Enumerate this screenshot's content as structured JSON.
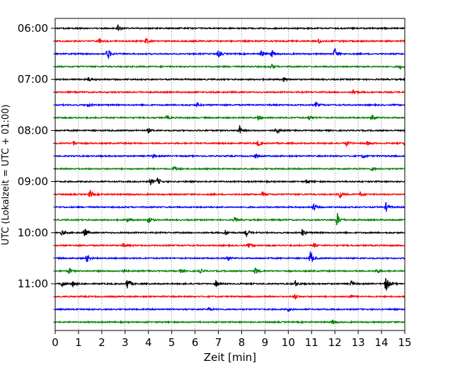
{
  "chart_data": {
    "type": "line",
    "subtype": "seismic-helicorder",
    "xlabel": "Zeit  [min]",
    "ylabel": "UTC (Lokalzeit = UTC + 01:00)",
    "xlim": [
      0,
      15
    ],
    "x_ticks": [
      "0",
      "1",
      "2",
      "3",
      "4",
      "5",
      "6",
      "7",
      "8",
      "9",
      "10",
      "11",
      "12",
      "13",
      "14",
      "15"
    ],
    "row_interval_minutes": 15,
    "rows_start": "06:00",
    "row_count": 24,
    "y_tick_labels": [
      "06:00",
      "07:00",
      "08:00",
      "09:00",
      "10:00",
      "11:00"
    ],
    "y_tick_rows": [
      0,
      4,
      8,
      12,
      16,
      20
    ],
    "trace_colors": [
      "#000000",
      "#ff0000",
      "#0000ff",
      "#008000"
    ],
    "vertical_grid": "dotted",
    "rows": [
      {
        "time": "06:00",
        "color": "#000000",
        "events": [
          {
            "min": 2.7,
            "amp": 0.4
          }
        ]
      },
      {
        "time": "06:15",
        "color": "#ff0000",
        "events": [
          {
            "min": 1.9,
            "amp": 0.3
          },
          {
            "min": 3.9,
            "amp": 0.4
          },
          {
            "min": 11.3,
            "amp": 0.3
          }
        ]
      },
      {
        "time": "06:30",
        "color": "#0000ff",
        "events": [
          {
            "min": 2.25,
            "amp": 0.9
          },
          {
            "min": 7.0,
            "amp": 0.5
          },
          {
            "min": 8.85,
            "amp": 0.5
          },
          {
            "min": 9.3,
            "amp": 0.5
          },
          {
            "min": 12.0,
            "amp": 0.8
          }
        ]
      },
      {
        "time": "06:45",
        "color": "#008000",
        "events": [
          {
            "min": 9.3,
            "amp": 0.3
          },
          {
            "min": 14.8,
            "amp": 0.3
          }
        ]
      },
      {
        "time": "07:00",
        "color": "#000000",
        "events": [
          {
            "min": 1.45,
            "amp": 0.35
          },
          {
            "min": 9.8,
            "amp": 0.3
          }
        ]
      },
      {
        "time": "07:15",
        "color": "#ff0000",
        "events": [
          {
            "min": 12.8,
            "amp": 0.4
          }
        ]
      },
      {
        "time": "07:30",
        "color": "#0000ff",
        "events": [
          {
            "min": 1.4,
            "amp": 0.25
          },
          {
            "min": 6.1,
            "amp": 0.3
          },
          {
            "min": 11.2,
            "amp": 0.35
          }
        ]
      },
      {
        "time": "07:45",
        "color": "#008000",
        "events": [
          {
            "min": 4.8,
            "amp": 0.25
          },
          {
            "min": 8.7,
            "amp": 0.3
          },
          {
            "min": 10.9,
            "amp": 0.3
          },
          {
            "min": 13.6,
            "amp": 0.45
          }
        ]
      },
      {
        "time": "08:00",
        "color": "#000000",
        "events": [
          {
            "min": 4.0,
            "amp": 0.3
          },
          {
            "min": 7.9,
            "amp": 0.65
          },
          {
            "min": 9.5,
            "amp": 0.45
          }
        ]
      },
      {
        "time": "08:15",
        "color": "#ff0000",
        "events": [
          {
            "min": 0.8,
            "amp": 0.3
          },
          {
            "min": 8.7,
            "amp": 0.4
          },
          {
            "min": 12.5,
            "amp": 0.4
          },
          {
            "min": 13.4,
            "amp": 0.3
          },
          {
            "min": 15.0,
            "amp": 0.3
          }
        ]
      },
      {
        "time": "08:30",
        "color": "#0000ff",
        "events": [
          {
            "min": 4.2,
            "amp": 0.25
          },
          {
            "min": 8.6,
            "amp": 0.25
          },
          {
            "min": 13.2,
            "amp": 0.25
          }
        ]
      },
      {
        "time": "08:45",
        "color": "#008000",
        "events": [
          {
            "min": 5.1,
            "amp": 0.4
          },
          {
            "min": 13.6,
            "amp": 0.25
          }
        ]
      },
      {
        "time": "09:00",
        "color": "#000000",
        "events": [
          {
            "min": 4.1,
            "amp": 0.4
          },
          {
            "min": 4.4,
            "amp": 0.5
          },
          {
            "min": 10.8,
            "amp": 0.3
          }
        ]
      },
      {
        "time": "09:15",
        "color": "#ff0000",
        "events": [
          {
            "min": 1.5,
            "amp": 0.55
          },
          {
            "min": 8.9,
            "amp": 0.35
          },
          {
            "min": 12.2,
            "amp": 0.5
          },
          {
            "min": 13.1,
            "amp": 0.3
          }
        ]
      },
      {
        "time": "09:30",
        "color": "#0000ff",
        "events": [
          {
            "min": 11.1,
            "amp": 0.5
          },
          {
            "min": 14.2,
            "amp": 0.6
          }
        ]
      },
      {
        "time": "09:45",
        "color": "#008000",
        "events": [
          {
            "min": 3.1,
            "amp": 0.3
          },
          {
            "min": 4.0,
            "amp": 0.6
          },
          {
            "min": 7.7,
            "amp": 0.35
          },
          {
            "min": 12.1,
            "amp": 1.0
          }
        ]
      },
      {
        "time": "10:00",
        "color": "#000000",
        "events": [
          {
            "min": 0.3,
            "amp": 0.35
          },
          {
            "min": 1.25,
            "amp": 0.7
          },
          {
            "min": 7.3,
            "amp": 0.35
          },
          {
            "min": 8.2,
            "amp": 0.5
          },
          {
            "min": 10.6,
            "amp": 0.5
          }
        ]
      },
      {
        "time": "10:15",
        "color": "#ff0000",
        "events": [
          {
            "min": 2.9,
            "amp": 0.3
          },
          {
            "min": 8.3,
            "amp": 0.3
          },
          {
            "min": 11.1,
            "amp": 0.3
          }
        ]
      },
      {
        "time": "10:30",
        "color": "#0000ff",
        "events": [
          {
            "min": 1.35,
            "amp": 0.55
          },
          {
            "min": 7.4,
            "amp": 0.4
          },
          {
            "min": 10.95,
            "amp": 1.0
          }
        ]
      },
      {
        "time": "10:45",
        "color": "#008000",
        "events": [
          {
            "min": 0.6,
            "amp": 0.45
          },
          {
            "min": 2.9,
            "amp": 0.3
          },
          {
            "min": 5.4,
            "amp": 0.3
          },
          {
            "min": 6.2,
            "amp": 0.3
          },
          {
            "min": 8.6,
            "amp": 0.5
          },
          {
            "min": 13.8,
            "amp": 0.3
          }
        ]
      },
      {
        "time": "11:00",
        "color": "#000000",
        "events": [
          {
            "min": 0.3,
            "amp": 0.5
          },
          {
            "min": 0.75,
            "amp": 0.4
          },
          {
            "min": 3.1,
            "amp": 0.9
          },
          {
            "min": 6.9,
            "amp": 0.45
          },
          {
            "min": 10.3,
            "amp": 0.4
          },
          {
            "min": 12.7,
            "amp": 0.4
          },
          {
            "min": 14.2,
            "amp": 1.2
          }
        ]
      },
      {
        "time": "11:15",
        "color": "#ff0000",
        "events": [
          {
            "min": 10.3,
            "amp": 0.3
          },
          {
            "min": 12.6,
            "amp": 0.3
          }
        ]
      },
      {
        "time": "11:30",
        "color": "#0000ff",
        "events": [
          {
            "min": 6.6,
            "amp": 0.2
          },
          {
            "min": 10.0,
            "amp": 0.2
          }
        ]
      },
      {
        "time": "11:45",
        "color": "#008000",
        "events": [
          {
            "min": 11.9,
            "amp": 0.3
          }
        ]
      }
    ]
  }
}
